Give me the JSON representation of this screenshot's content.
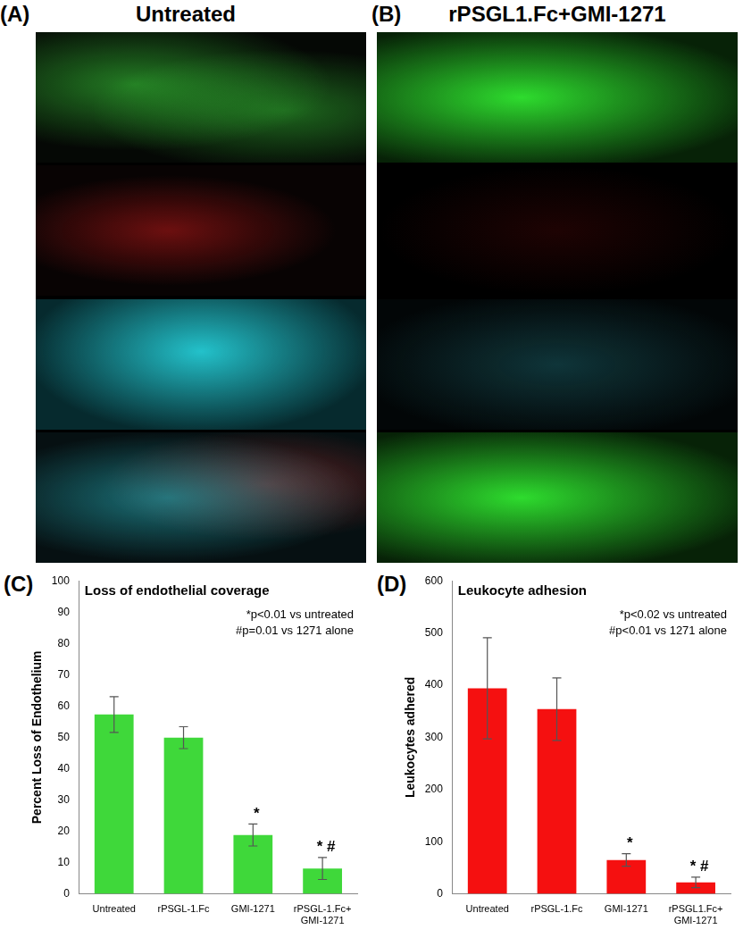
{
  "images": [
    {
      "label": "(A)",
      "title": "Untreated"
    },
    {
      "label": "(B)",
      "title": "rPSGL1.Fc+GMI-1271"
    }
  ],
  "chart_data": [
    {
      "type": "bar",
      "panel": "(C)",
      "title": "Loss of endothelial coverage",
      "y_label": "Percent Loss of Endothelium",
      "categories": [
        "Untreated",
        "rPSGL-1.Fc",
        "GMI-1271",
        "rPSGL-1.Fc+ GMI-1271"
      ],
      "values": [
        57.3,
        49.9,
        18.8,
        8.1
      ],
      "errors": [
        5.7,
        3.5,
        3.5,
        3.5
      ],
      "marks": [
        null,
        null,
        "*",
        "* #"
      ],
      "annotations": [
        "*p<0.01 vs untreated",
        "#p=0.01 vs 1271 alone"
      ],
      "color": "#3fd83a",
      "ylim": [
        0,
        100
      ],
      "yticks": [
        0,
        10,
        20,
        30,
        40,
        50,
        60,
        70,
        80,
        90,
        100
      ],
      "grid": false
    },
    {
      "type": "bar",
      "panel": "(D)",
      "title": "Leukocyte adhesion",
      "y_label": "Leukocytes adhered",
      "categories": [
        "Untreated",
        "rPSGL-1.Fc",
        "GMI-1271",
        "rPSGL1.Fc+ GMI-1271"
      ],
      "values": [
        394,
        354,
        65,
        22
      ],
      "errors": [
        97,
        60,
        12,
        10
      ],
      "marks": [
        null,
        null,
        "*",
        "* #"
      ],
      "annotations": [
        "*p<0.02 vs untreated",
        "#p<0.01 vs 1271 alone"
      ],
      "color": "#f51010",
      "ylim": [
        0,
        600
      ],
      "yticks": [
        0,
        100,
        200,
        300,
        400,
        500,
        600
      ],
      "grid": false
    }
  ]
}
